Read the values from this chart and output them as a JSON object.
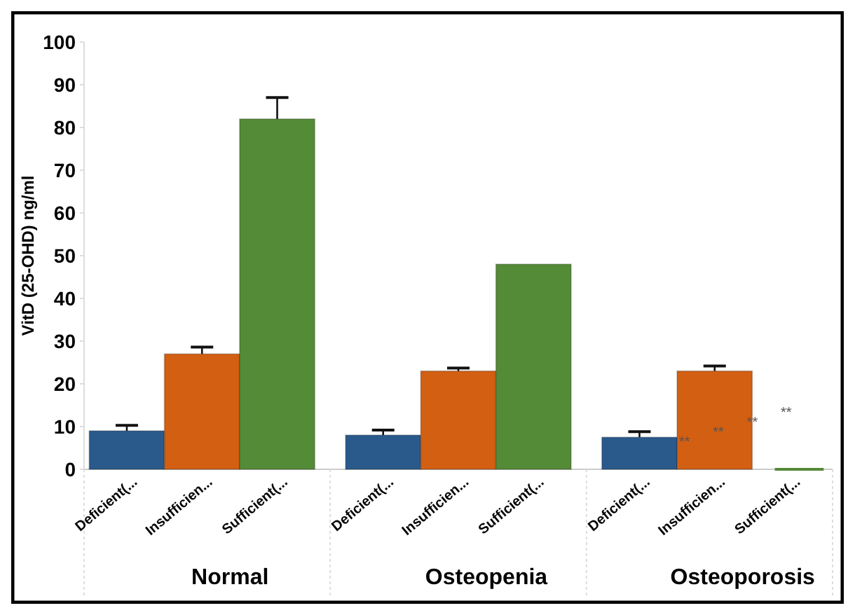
{
  "chart_data": {
    "type": "bar",
    "ylabel": "VitD (25-OHD) ng/ml",
    "categories": [
      "Normal",
      "Osteopenia",
      "Osteoporosis"
    ],
    "series": [
      {
        "name": "Deficient(...",
        "color": "#2a5a8c",
        "values": [
          9,
          8,
          7.5
        ],
        "errors": [
          [
            9,
            10.3
          ],
          [
            8,
            9.2
          ],
          [
            7.5,
            8.8
          ]
        ]
      },
      {
        "name": "Insufficien...",
        "color": "#d35f12",
        "values": [
          27,
          23,
          23
        ],
        "errors": [
          [
            27,
            28.6
          ],
          [
            23,
            23.7
          ],
          [
            23,
            24.2
          ]
        ]
      },
      {
        "name": "Sufficient(...",
        "color": "#548b36",
        "values": [
          82,
          48,
          0
        ],
        "errors": [
          [
            82,
            87
          ],
          null,
          null
        ]
      }
    ],
    "ylim": [
      0,
      100
    ],
    "yticks": [
      0,
      10,
      20,
      30,
      40,
      50,
      60,
      70,
      80,
      90,
      100
    ],
    "grid": false,
    "annotations": [
      "**",
      "**",
      "**",
      "**"
    ]
  }
}
